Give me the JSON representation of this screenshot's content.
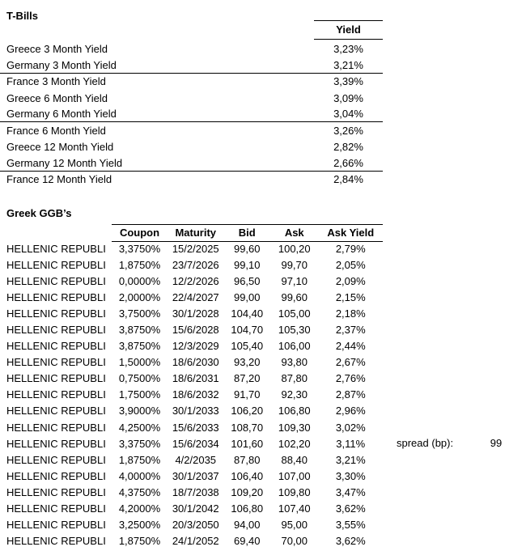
{
  "colors": {
    "text": "#000000",
    "background": "#ffffff",
    "rule_line": "#000000"
  },
  "tbills": {
    "title": "T-Bills",
    "yield_header": "Yield",
    "rows": [
      {
        "label": "Greece 3 Month Yield",
        "yield": "3,23%"
      },
      {
        "label": "Germany 3 Month Yield",
        "yield": "3,21%"
      },
      {
        "label": "France 3 Month Yield",
        "yield": "3,39%"
      },
      {
        "label": "Greece 6 Month Yield",
        "yield": "3,09%"
      },
      {
        "label": "Germany 6 Month Yield",
        "yield": "3,04%"
      },
      {
        "label": "France 6 Month Yield",
        "yield": "3,26%"
      },
      {
        "label": "Greece 12 Month Yield",
        "yield": "2,82%"
      },
      {
        "label": "Germany 12 Month Yield",
        "yield": "2,66%"
      },
      {
        "label": "France 12 Month Yield",
        "yield": "2,84%"
      }
    ]
  },
  "ggb": {
    "title": "Greek GGB’s",
    "headers": {
      "coupon": "Coupon",
      "maturity": "Maturity",
      "bid": "Bid",
      "ask": "Ask",
      "ask_yield": "Ask Yield"
    },
    "rows": [
      {
        "name": "HELLENIC REPUBLI",
        "coupon": "3,3750%",
        "maturity": "15/2/2025",
        "bid": "99,60",
        "ask": "100,20",
        "ask_yield": "2,79%"
      },
      {
        "name": "HELLENIC REPUBLI",
        "coupon": "1,8750%",
        "maturity": "23/7/2026",
        "bid": "99,10",
        "ask": "99,70",
        "ask_yield": "2,05%"
      },
      {
        "name": "HELLENIC REPUBLI",
        "coupon": "0,0000%",
        "maturity": "12/2/2026",
        "bid": "96,50",
        "ask": "97,10",
        "ask_yield": "2,09%"
      },
      {
        "name": "HELLENIC REPUBLI",
        "coupon": "2,0000%",
        "maturity": "22/4/2027",
        "bid": "99,00",
        "ask": "99,60",
        "ask_yield": "2,15%"
      },
      {
        "name": "HELLENIC REPUBLI",
        "coupon": "3,7500%",
        "maturity": "30/1/2028",
        "bid": "104,40",
        "ask": "105,00",
        "ask_yield": "2,18%"
      },
      {
        "name": "HELLENIC REPUBLI",
        "coupon": "3,8750%",
        "maturity": "15/6/2028",
        "bid": "104,70",
        "ask": "105,30",
        "ask_yield": "2,37%"
      },
      {
        "name": "HELLENIC REPUBLI",
        "coupon": "3,8750%",
        "maturity": "12/3/2029",
        "bid": "105,40",
        "ask": "106,00",
        "ask_yield": "2,44%"
      },
      {
        "name": "HELLENIC REPUBLI",
        "coupon": "1,5000%",
        "maturity": "18/6/2030",
        "bid": "93,20",
        "ask": "93,80",
        "ask_yield": "2,67%"
      },
      {
        "name": "HELLENIC REPUBLI",
        "coupon": "0,7500%",
        "maturity": "18/6/2031",
        "bid": "87,20",
        "ask": "87,80",
        "ask_yield": "2,76%"
      },
      {
        "name": "HELLENIC REPUBLI",
        "coupon": "1,7500%",
        "maturity": "18/6/2032",
        "bid": "91,70",
        "ask": "92,30",
        "ask_yield": "2,87%"
      },
      {
        "name": "HELLENIC REPUBLI",
        "coupon": "3,9000%",
        "maturity": "30/1/2033",
        "bid": "106,20",
        "ask": "106,80",
        "ask_yield": "2,96%"
      },
      {
        "name": "HELLENIC REPUBLI",
        "coupon": "4,2500%",
        "maturity": "15/6/2033",
        "bid": "108,70",
        "ask": "109,30",
        "ask_yield": "3,02%"
      },
      {
        "name": "HELLENIC REPUBLI",
        "coupon": "3,3750%",
        "maturity": "15/6/2034",
        "bid": "101,60",
        "ask": "102,20",
        "ask_yield": "3,11%"
      },
      {
        "name": "HELLENIC REPUBLI",
        "coupon": "1,8750%",
        "maturity": "4/2/2035",
        "bid": "87,80",
        "ask": "88,40",
        "ask_yield": "3,21%"
      },
      {
        "name": "HELLENIC REPUBLI",
        "coupon": "4,0000%",
        "maturity": "30/1/2037",
        "bid": "106,40",
        "ask": "107,00",
        "ask_yield": "3,30%"
      },
      {
        "name": "HELLENIC REPUBLI",
        "coupon": "4,3750%",
        "maturity": "18/7/2038",
        "bid": "109,20",
        "ask": "109,80",
        "ask_yield": "3,47%"
      },
      {
        "name": "HELLENIC REPUBLI",
        "coupon": "4,2000%",
        "maturity": "30/1/2042",
        "bid": "106,80",
        "ask": "107,40",
        "ask_yield": "3,62%"
      },
      {
        "name": "HELLENIC REPUBLI",
        "coupon": "3,2500%",
        "maturity": "20/3/2050",
        "bid": "94,00",
        "ask": "95,00",
        "ask_yield": "3,55%"
      },
      {
        "name": "HELLENIC REPUBLI",
        "coupon": "1,8750%",
        "maturity": "24/1/2052",
        "bid": "69,40",
        "ask": "70,00",
        "ask_yield": "3,62%"
      }
    ]
  },
  "spread": {
    "label": "spread (bp):",
    "value": "99"
  }
}
